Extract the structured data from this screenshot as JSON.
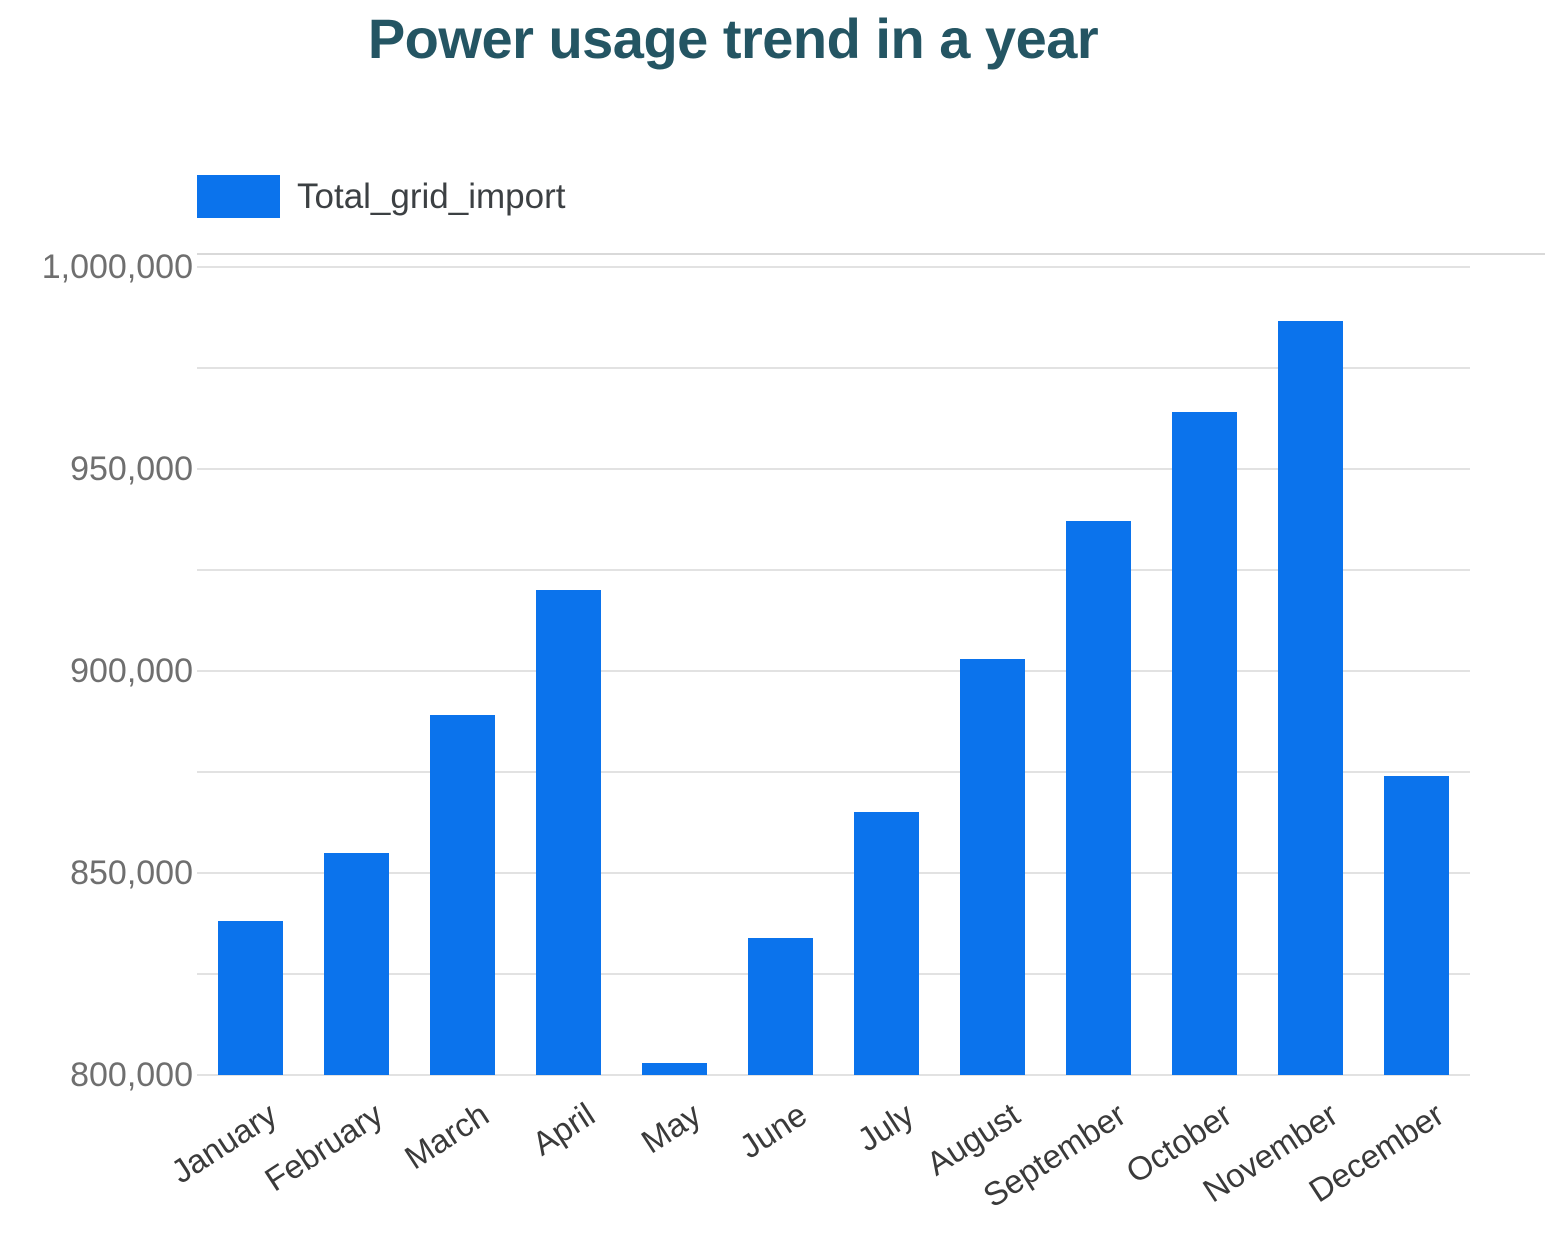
{
  "title": "Power usage trend in a year",
  "legend": {
    "series_label": "Total_grid_import"
  },
  "colors": {
    "bar": "#0b73ec",
    "title": "#245563",
    "y_tick_label": "#6f6f6f",
    "x_tick_label": "#3a3a3a",
    "gridline": "#e2e2e2",
    "background": "#ffffff"
  },
  "chart_data": {
    "type": "bar",
    "title": "Power usage trend in a year",
    "series_name": "Total_grid_import",
    "categories": [
      "January",
      "February",
      "March",
      "April",
      "May",
      "June",
      "July",
      "August",
      "September",
      "October",
      "November",
      "December"
    ],
    "values": [
      838000,
      855000,
      889000,
      920000,
      803000,
      834000,
      865000,
      903000,
      937000,
      964000,
      986500,
      874000
    ],
    "xlabel": "",
    "ylabel": "",
    "ylim": [
      800000,
      1003200
    ],
    "grid_interval": 25000,
    "grid_on": true,
    "legend_position": "top-left",
    "yticks": [
      {
        "value": 800000,
        "label": "800,000"
      },
      {
        "value": 850000,
        "label": "850,000"
      },
      {
        "value": 900000,
        "label": "900,000"
      },
      {
        "value": 950000,
        "label": "950,000"
      },
      {
        "value": 1000000,
        "label": "1,000,000"
      }
    ]
  }
}
